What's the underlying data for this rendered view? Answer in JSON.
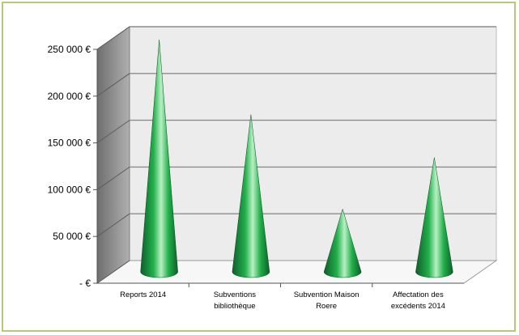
{
  "chart_data": {
    "type": "bar",
    "style": "3d-cone",
    "title": "",
    "xlabel": "",
    "ylabel": "",
    "categories": [
      [
        "Reports 2014"
      ],
      [
        "Subventions",
        "bibliothèque"
      ],
      [
        "Subvention Maison",
        "Roere"
      ],
      [
        "Affectation des",
        "excédents 2014"
      ]
    ],
    "values": [
      243000,
      163000,
      62000,
      117000
    ],
    "ylim": [
      0,
      250000
    ],
    "yticks": [
      0,
      50000,
      100000,
      150000,
      200000,
      250000
    ],
    "ytick_labels": [
      "- €",
      "50 000 €",
      "100 000 €",
      "150 000 €",
      "200 000 €",
      "250 000 €"
    ],
    "grid": true,
    "legend": "none",
    "colors": {
      "cone_dark": "#0d5e2a",
      "cone_mid": "#22b04b",
      "cone_light": "#b8f0c4",
      "back_wall": "#ececec",
      "side_wall": "#9a9a9a",
      "grid": "#8c8c8c",
      "frame": "#b5c97a"
    }
  }
}
